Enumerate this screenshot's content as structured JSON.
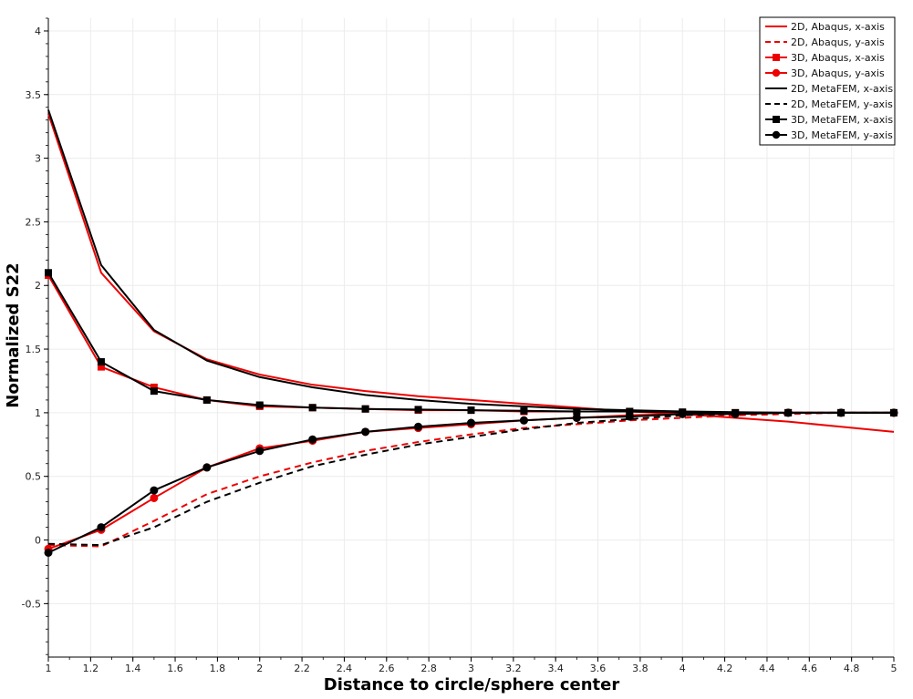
{
  "chart_data": {
    "type": "line",
    "xlabel": "Distance to circle/sphere center",
    "ylabel": "Normalized S22",
    "xlim": [
      1,
      5
    ],
    "ylim": [
      -0.92,
      4.1
    ],
    "x_ticks": [
      "1",
      "1.2",
      "1.4",
      "1.6",
      "1.8",
      "2",
      "2.2",
      "2.4",
      "2.6",
      "2.8",
      "3",
      "3.2",
      "3.4",
      "3.6",
      "3.8",
      "4",
      "4.2",
      "4.4",
      "4.6",
      "4.8",
      "5"
    ],
    "y_ticks": [
      "-0.5",
      "0",
      "0.5",
      "1",
      "1.5",
      "2",
      "2.5",
      "3",
      "3.5",
      "4"
    ],
    "grid": true,
    "legend_position": "top-right",
    "colors": {
      "red": "#ee0000",
      "black": "#000000",
      "grid": "#ececec"
    },
    "series": [
      {
        "name": "2D, Abaqus, x-axis",
        "color": "#ee0000",
        "dash": false,
        "marker": "none",
        "x": [
          1,
          1.25,
          1.5,
          1.75,
          2,
          2.25,
          2.5,
          2.75,
          3,
          3.25,
          3.5,
          3.75,
          4,
          4.25,
          4.5,
          4.75,
          5
        ],
        "y": [
          3.35,
          2.1,
          1.64,
          1.42,
          1.3,
          1.22,
          1.17,
          1.13,
          1.1,
          1.07,
          1.04,
          1.01,
          0.99,
          0.96,
          0.93,
          0.89,
          0.85
        ]
      },
      {
        "name": "2D, Abaqus, y-axis",
        "color": "#ee0000",
        "dash": true,
        "marker": "none",
        "x": [
          1,
          1.25,
          1.5,
          1.75,
          2,
          2.25,
          2.5,
          2.75,
          3,
          3.25,
          3.5,
          3.75,
          4,
          4.25,
          4.5,
          4.75,
          5
        ],
        "y": [
          -0.04,
          -0.05,
          0.15,
          0.36,
          0.5,
          0.61,
          0.7,
          0.77,
          0.83,
          0.88,
          0.91,
          0.94,
          0.96,
          0.98,
          0.99,
          1.0,
          1.0
        ]
      },
      {
        "name": "3D, Abaqus, x-axis",
        "color": "#ee0000",
        "dash": false,
        "marker": "square",
        "x": [
          1,
          1.25,
          1.5,
          1.75,
          2,
          2.25,
          2.5,
          2.75,
          3,
          3.25,
          3.5,
          3.75,
          4,
          4.25,
          4.5,
          4.75,
          5
        ],
        "y": [
          2.08,
          1.36,
          1.2,
          1.1,
          1.05,
          1.04,
          1.03,
          1.02,
          1.02,
          1.01,
          1.01,
          1.01,
          1.0,
          1.0,
          1.0,
          1.0,
          1.0
        ]
      },
      {
        "name": "3D, Abaqus, y-axis",
        "color": "#ee0000",
        "dash": false,
        "marker": "circle",
        "x": [
          1,
          1.25,
          1.5,
          1.75,
          2,
          2.25,
          2.5,
          2.75,
          3,
          3.25,
          3.5,
          3.75,
          4,
          4.25,
          4.5,
          4.75,
          5
        ],
        "y": [
          -0.07,
          0.08,
          0.33,
          0.57,
          0.72,
          0.78,
          0.85,
          0.88,
          0.91,
          0.94,
          0.96,
          0.98,
          0.99,
          0.99,
          1.0,
          1.0,
          1.0
        ]
      },
      {
        "name": "2D, MetaFEM, x-axis",
        "color": "#000000",
        "dash": false,
        "marker": "none",
        "x": [
          1,
          1.25,
          1.5,
          1.75,
          2,
          2.25,
          2.5,
          2.75,
          3,
          3.25,
          3.5,
          3.75,
          4,
          4.25,
          4.5,
          4.75,
          5
        ],
        "y": [
          3.38,
          2.16,
          1.65,
          1.41,
          1.28,
          1.2,
          1.14,
          1.1,
          1.07,
          1.05,
          1.03,
          1.02,
          1.01,
          1.005,
          1.0,
          1.0,
          1.0
        ]
      },
      {
        "name": "2D, MetaFEM, y-axis",
        "color": "#000000",
        "dash": true,
        "marker": "none",
        "x": [
          1,
          1.25,
          1.5,
          1.75,
          2,
          2.25,
          2.5,
          2.75,
          3,
          3.25,
          3.5,
          3.75,
          4,
          4.25,
          4.5,
          4.75,
          5
        ],
        "y": [
          -0.03,
          -0.04,
          0.1,
          0.3,
          0.45,
          0.58,
          0.67,
          0.75,
          0.81,
          0.87,
          0.92,
          0.95,
          0.98,
          0.99,
          1.0,
          1.0,
          1.0
        ]
      },
      {
        "name": "3D, MetaFEM, x-axis",
        "color": "#000000",
        "dash": false,
        "marker": "square",
        "x": [
          1,
          1.25,
          1.5,
          1.75,
          2,
          2.25,
          2.5,
          2.75,
          3,
          3.25,
          3.5,
          3.75,
          4,
          4.25,
          4.5,
          4.75,
          5
        ],
        "y": [
          2.1,
          1.4,
          1.17,
          1.1,
          1.06,
          1.04,
          1.03,
          1.025,
          1.02,
          1.015,
          1.01,
          1.01,
          1.005,
          1.0,
          1.0,
          1.0,
          1.0
        ]
      },
      {
        "name": "3D, MetaFEM, y-axis",
        "color": "#000000",
        "dash": false,
        "marker": "circle",
        "x": [
          1,
          1.25,
          1.5,
          1.75,
          2,
          2.25,
          2.5,
          2.75,
          3,
          3.25,
          3.5,
          3.75,
          4,
          4.25,
          4.5,
          4.75,
          5
        ],
        "y": [
          -0.1,
          0.1,
          0.39,
          0.57,
          0.7,
          0.79,
          0.85,
          0.89,
          0.92,
          0.94,
          0.96,
          0.97,
          0.99,
          0.99,
          1.0,
          1.0,
          1.0
        ]
      }
    ]
  }
}
